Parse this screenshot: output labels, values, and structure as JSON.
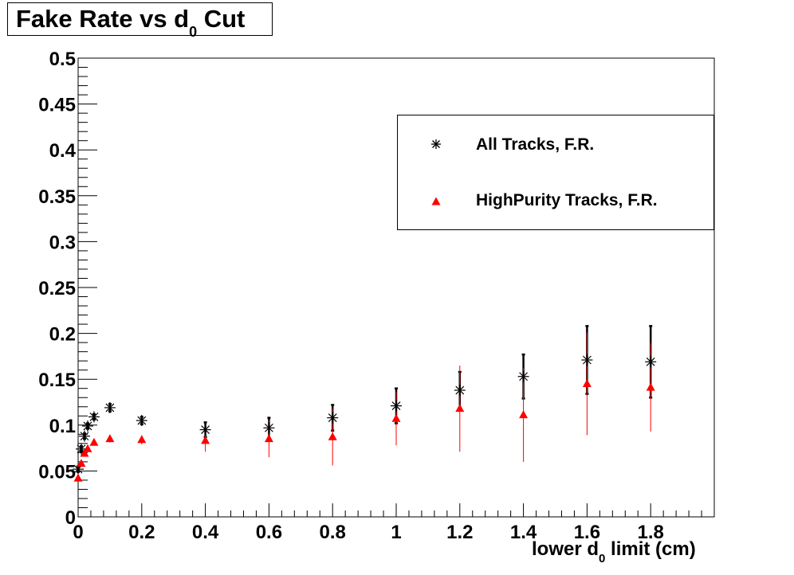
{
  "chart_data": {
    "type": "scatter",
    "title_main": "Fake Rate vs d",
    "title_sub": "0",
    "title_end": " Cut",
    "xlabel_main": "lower d",
    "xlabel_sub": "0",
    "xlabel_end": " limit (cm)",
    "ylabel": "",
    "xlim": [
      0,
      2.0
    ],
    "ylim": [
      0,
      0.5
    ],
    "x_ticks": [
      "0",
      "0.2",
      "0.4",
      "0.6",
      "0.8",
      "1",
      "1.2",
      "1.4",
      "1.6",
      "1.8"
    ],
    "x_tick_values": [
      0,
      0.2,
      0.4,
      0.6,
      0.8,
      1.0,
      1.2,
      1.4,
      1.6,
      1.8
    ],
    "y_ticks": [
      "0",
      "0.05",
      "0.1",
      "0.15",
      "0.2",
      "0.25",
      "0.3",
      "0.35",
      "0.4",
      "0.45",
      "0.5"
    ],
    "y_tick_values": [
      0,
      0.05,
      0.1,
      0.15,
      0.2,
      0.25,
      0.3,
      0.35,
      0.4,
      0.45,
      0.5
    ],
    "grid": false,
    "legend_position": "top-right",
    "series": [
      {
        "name": "All Tracks, F.R.",
        "marker": "star",
        "color": "#000000",
        "x": [
          0.0,
          0.01,
          0.02,
          0.03,
          0.05,
          0.1,
          0.2,
          0.4,
          0.6,
          0.8,
          1.0,
          1.2,
          1.4,
          1.6,
          1.8
        ],
        "y": [
          0.052,
          0.074,
          0.088,
          0.099,
          0.109,
          0.119,
          0.105,
          0.095,
          0.097,
          0.108,
          0.121,
          0.138,
          0.153,
          0.171,
          0.169
        ],
        "err": [
          0.003,
          0.003,
          0.003,
          0.003,
          0.003,
          0.004,
          0.004,
          0.008,
          0.011,
          0.014,
          0.019,
          0.02,
          0.024,
          0.037,
          0.039
        ]
      },
      {
        "name": "HighPurity Tracks, F.R.",
        "marker": "triangle",
        "color": "#ff0000",
        "x": [
          0.0,
          0.01,
          0.02,
          0.03,
          0.05,
          0.1,
          0.2,
          0.4,
          0.6,
          0.8,
          1.0,
          1.2,
          1.4,
          1.6,
          1.8
        ],
        "y": [
          0.042,
          0.058,
          0.069,
          0.074,
          0.081,
          0.085,
          0.084,
          0.083,
          0.085,
          0.087,
          0.107,
          0.118,
          0.111,
          0.145,
          0.141
        ],
        "err": [
          0.003,
          0.003,
          0.003,
          0.003,
          0.003,
          0.004,
          0.005,
          0.012,
          0.02,
          0.031,
          0.029,
          0.047,
          0.051,
          0.056,
          0.048
        ]
      }
    ]
  }
}
